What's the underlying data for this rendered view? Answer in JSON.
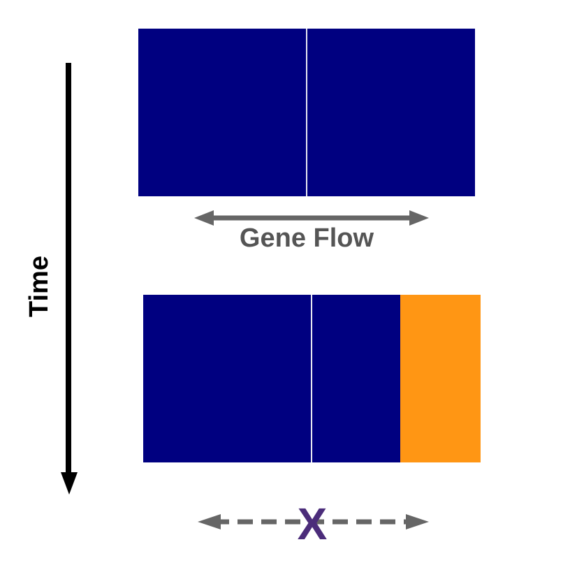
{
  "labels": {
    "time": "Time",
    "gene_flow": "Gene Flow",
    "blocked_marker": "X"
  },
  "colors": {
    "population_blue": "#000080",
    "population_orange": "#FF9614",
    "arrow_gray": "#666666",
    "label_gray": "#555555",
    "time_arrow": "#000000",
    "blocked_marker": "#4B2C7A",
    "divider": "#D0D0E0"
  }
}
